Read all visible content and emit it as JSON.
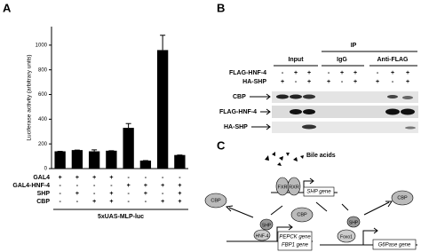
{
  "chart_data": {
    "type": "bar",
    "panel_label": "A",
    "y_label": "Luciferase activity (arbitrary units)",
    "x_label": "5xUAS-MLP-luc",
    "values": [
      140,
      150,
      140,
      145,
      330,
      65,
      960,
      110
    ],
    "errors": [
      0,
      0,
      12,
      0,
      35,
      0,
      120,
      0
    ],
    "color": "#000000",
    "ylim": [
      0,
      1150
    ],
    "yticks": [
      0,
      200,
      400,
      600,
      800,
      1000
    ],
    "conditions": [
      {
        "name": "GAL4",
        "signs": [
          "+",
          "+",
          "+",
          "+",
          "-",
          "-",
          "-",
          "-"
        ]
      },
      {
        "name": "GAL4-HNF-4",
        "signs": [
          "-",
          "-",
          "-",
          "-",
          "+",
          "+",
          "+",
          "+"
        ]
      },
      {
        "name": "SHP",
        "signs": [
          "-",
          "+",
          "-",
          "+",
          "-",
          "+",
          "-",
          "+"
        ]
      },
      {
        "name": "CBP",
        "signs": [
          "-",
          "-",
          "+",
          "+",
          "-",
          "-",
          "+",
          "+"
        ]
      }
    ]
  },
  "panel_b": {
    "label": "B",
    "ip": "IP",
    "groups": [
      "Input",
      "IgG",
      "Anti-FLAG"
    ],
    "transfections": [
      {
        "name": "FLAG-HNF-4",
        "signs": [
          "-",
          "+",
          "+",
          "-",
          "+",
          "+",
          "-",
          "+",
          "+"
        ]
      },
      {
        "name": "HA-SHP",
        "signs": [
          "+",
          "-",
          "+",
          "+",
          "-",
          "+",
          "+",
          "-",
          "+"
        ]
      }
    ],
    "blots": [
      "CBP",
      "FLAG-HNF-4",
      "HA-SHP"
    ]
  },
  "panel_c": {
    "label": "C",
    "bile_acids": "Bile acids",
    "fxr": "FXR",
    "rxr": "RXR",
    "shp_gene": "SHP gene",
    "cbp_left": "CBP",
    "cbp_mid": "CBP",
    "cbp_right": "CBP",
    "shp_left": "SHP",
    "hnf4": "HNF-4",
    "pepck_gene": "PEPCK gene",
    "fbp1_gene": "FBP1 gene",
    "shp_right": "SHP",
    "foxo1": "Foxo1",
    "g6pase_gene": "G6Pase gene"
  }
}
